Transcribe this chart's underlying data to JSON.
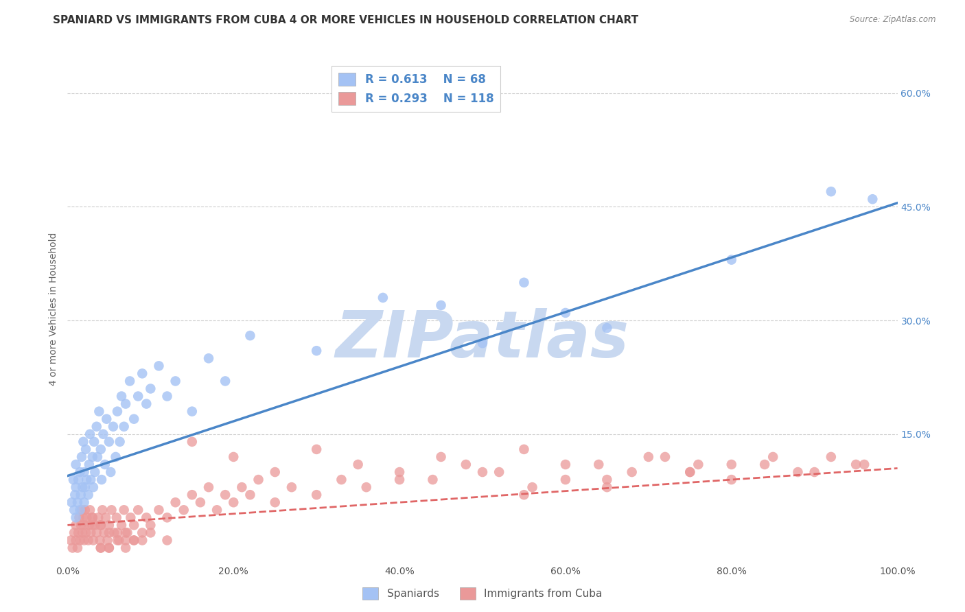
{
  "title": "SPANIARD VS IMMIGRANTS FROM CUBA 4 OR MORE VEHICLES IN HOUSEHOLD CORRELATION CHART",
  "source_text": "Source: ZipAtlas.com",
  "ylabel": "4 or more Vehicles in Household",
  "xlim": [
    0.0,
    1.0
  ],
  "ylim": [
    -0.02,
    0.65
  ],
  "xtick_labels": [
    "0.0%",
    "20.0%",
    "40.0%",
    "60.0%",
    "80.0%",
    "100.0%"
  ],
  "xtick_vals": [
    0.0,
    0.2,
    0.4,
    0.6,
    0.8,
    1.0
  ],
  "ytick_labels": [
    "15.0%",
    "30.0%",
    "45.0%",
    "60.0%"
  ],
  "ytick_vals": [
    0.15,
    0.3,
    0.45,
    0.6
  ],
  "blue_color": "#a4c2f4",
  "pink_color": "#ea9999",
  "blue_line_color": "#4a86c8",
  "pink_line_color": "#e06666",
  "legend_text_color": "#4a86c8",
  "watermark_color": "#c8d8f0",
  "R_blue": 0.613,
  "N_blue": 68,
  "R_pink": 0.293,
  "N_pink": 118,
  "blue_scatter_x": [
    0.005,
    0.007,
    0.008,
    0.009,
    0.01,
    0.01,
    0.01,
    0.012,
    0.013,
    0.015,
    0.015,
    0.016,
    0.017,
    0.018,
    0.019,
    0.02,
    0.02,
    0.021,
    0.022,
    0.023,
    0.025,
    0.026,
    0.027,
    0.028,
    0.03,
    0.031,
    0.032,
    0.033,
    0.035,
    0.036,
    0.038,
    0.04,
    0.041,
    0.043,
    0.045,
    0.047,
    0.05,
    0.052,
    0.055,
    0.058,
    0.06,
    0.063,
    0.065,
    0.068,
    0.07,
    0.075,
    0.08,
    0.085,
    0.09,
    0.095,
    0.1,
    0.11,
    0.12,
    0.13,
    0.15,
    0.17,
    0.19,
    0.22,
    0.3,
    0.38,
    0.45,
    0.5,
    0.55,
    0.6,
    0.65,
    0.8,
    0.92,
    0.97
  ],
  "blue_scatter_y": [
    0.06,
    0.09,
    0.05,
    0.07,
    0.04,
    0.08,
    0.11,
    0.06,
    0.09,
    0.05,
    0.1,
    0.07,
    0.12,
    0.08,
    0.14,
    0.06,
    0.1,
    0.08,
    0.13,
    0.09,
    0.07,
    0.11,
    0.15,
    0.09,
    0.12,
    0.08,
    0.14,
    0.1,
    0.16,
    0.12,
    0.18,
    0.13,
    0.09,
    0.15,
    0.11,
    0.17,
    0.14,
    0.1,
    0.16,
    0.12,
    0.18,
    0.14,
    0.2,
    0.16,
    0.19,
    0.22,
    0.17,
    0.2,
    0.23,
    0.19,
    0.21,
    0.24,
    0.2,
    0.22,
    0.18,
    0.25,
    0.22,
    0.28,
    0.26,
    0.33,
    0.32,
    0.27,
    0.35,
    0.31,
    0.29,
    0.38,
    0.47,
    0.46
  ],
  "pink_scatter_x": [
    0.004,
    0.006,
    0.008,
    0.01,
    0.01,
    0.012,
    0.013,
    0.014,
    0.015,
    0.016,
    0.017,
    0.018,
    0.019,
    0.02,
    0.02,
    0.021,
    0.022,
    0.023,
    0.025,
    0.026,
    0.027,
    0.028,
    0.03,
    0.031,
    0.033,
    0.035,
    0.037,
    0.039,
    0.04,
    0.042,
    0.044,
    0.046,
    0.048,
    0.05,
    0.053,
    0.056,
    0.059,
    0.062,
    0.065,
    0.068,
    0.072,
    0.076,
    0.08,
    0.085,
    0.09,
    0.095,
    0.1,
    0.11,
    0.12,
    0.13,
    0.14,
    0.15,
    0.16,
    0.17,
    0.18,
    0.19,
    0.2,
    0.21,
    0.22,
    0.23,
    0.25,
    0.27,
    0.3,
    0.33,
    0.36,
    0.4,
    0.44,
    0.48,
    0.52,
    0.56,
    0.6,
    0.64,
    0.68,
    0.72,
    0.76,
    0.8,
    0.84,
    0.88,
    0.92,
    0.96,
    0.15,
    0.2,
    0.25,
    0.3,
    0.35,
    0.4,
    0.45,
    0.5,
    0.55,
    0.6,
    0.65,
    0.7,
    0.75,
    0.8,
    0.85,
    0.9,
    0.95,
    0.55,
    0.65,
    0.75,
    0.1,
    0.12,
    0.07,
    0.08,
    0.05,
    0.06,
    0.09,
    0.04,
    0.05,
    0.07,
    0.03,
    0.04,
    0.06,
    0.05,
    0.07,
    0.08,
    0.03,
    0.04
  ],
  "pink_scatter_y": [
    0.01,
    0.0,
    0.02,
    0.01,
    0.03,
    0.0,
    0.02,
    0.04,
    0.01,
    0.03,
    0.05,
    0.02,
    0.04,
    0.01,
    0.03,
    0.05,
    0.02,
    0.04,
    0.01,
    0.03,
    0.05,
    0.02,
    0.04,
    0.01,
    0.03,
    0.02,
    0.04,
    0.01,
    0.03,
    0.05,
    0.02,
    0.04,
    0.01,
    0.03,
    0.05,
    0.02,
    0.04,
    0.01,
    0.03,
    0.05,
    0.02,
    0.04,
    0.03,
    0.05,
    0.02,
    0.04,
    0.03,
    0.05,
    0.04,
    0.06,
    0.05,
    0.07,
    0.06,
    0.08,
    0.05,
    0.07,
    0.06,
    0.08,
    0.07,
    0.09,
    0.06,
    0.08,
    0.07,
    0.09,
    0.08,
    0.1,
    0.09,
    0.11,
    0.1,
    0.08,
    0.09,
    0.11,
    0.1,
    0.12,
    0.11,
    0.09,
    0.11,
    0.1,
    0.12,
    0.11,
    0.14,
    0.12,
    0.1,
    0.13,
    0.11,
    0.09,
    0.12,
    0.1,
    0.13,
    0.11,
    0.09,
    0.12,
    0.1,
    0.11,
    0.12,
    0.1,
    0.11,
    0.07,
    0.08,
    0.1,
    0.02,
    0.01,
    0.0,
    0.01,
    0.0,
    0.02,
    0.01,
    0.0,
    0.02,
    0.01,
    0.03,
    0.0,
    0.01,
    0.0,
    0.02,
    0.01,
    0.04,
    0.03
  ],
  "blue_trend_y_start": 0.095,
  "blue_trend_y_end": 0.455,
  "pink_trend_y_start": 0.03,
  "pink_trend_y_end": 0.105,
  "background_color": "#ffffff",
  "grid_color": "#cccccc",
  "legend_labels": [
    "Spaniards",
    "Immigrants from Cuba"
  ],
  "title_fontsize": 11,
  "axis_label_fontsize": 10,
  "tick_fontsize": 10
}
